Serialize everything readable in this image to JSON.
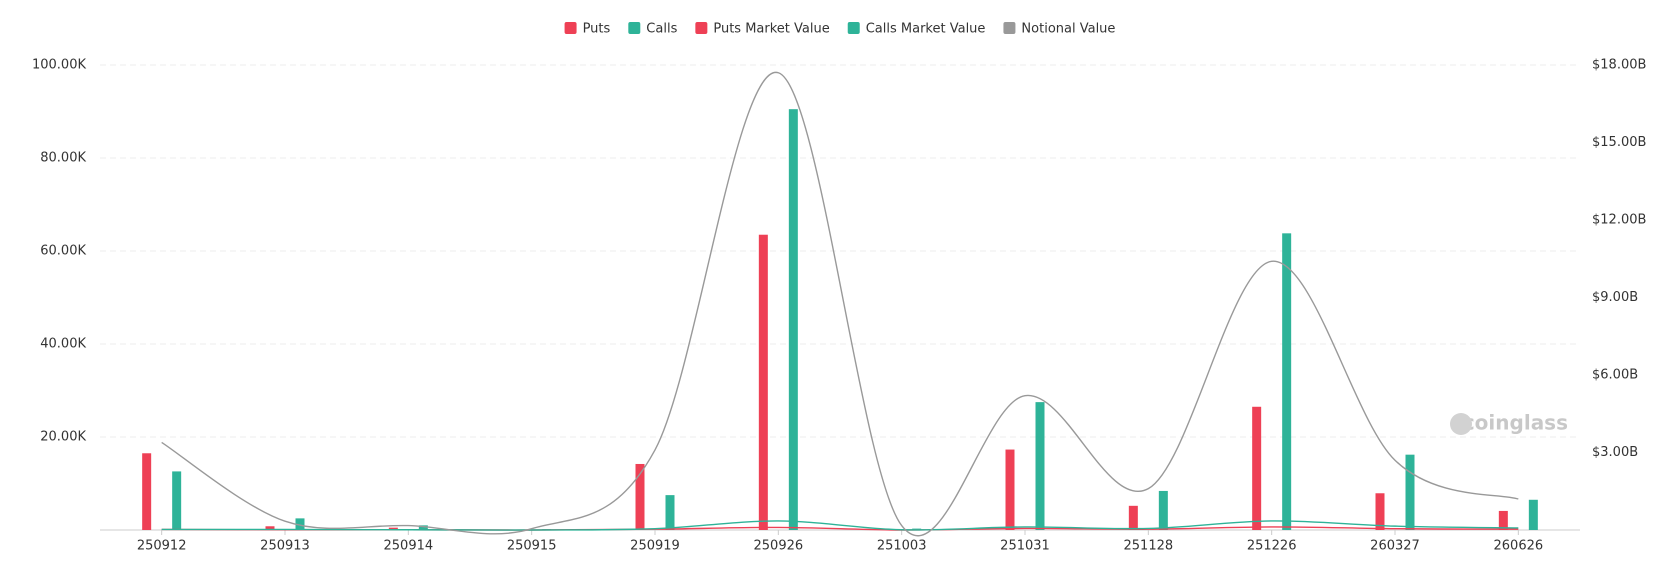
{
  "chart_data": {
    "type": "bar-line",
    "categories": [
      "250912",
      "250913",
      "250914",
      "250915",
      "250919",
      "250926",
      "251003",
      "251031",
      "251128",
      "251226",
      "260327",
      "260626"
    ],
    "series": [
      {
        "name": "Puts",
        "kind": "bar",
        "color": "#ee4055",
        "values": [
          16.5,
          0.8,
          0.5,
          0,
          14.2,
          63.5,
          0,
          17.3,
          5.2,
          26.5,
          7.9,
          4.1
        ]
      },
      {
        "name": "Calls",
        "kind": "bar",
        "color": "#2eb398",
        "values": [
          12.6,
          2.5,
          1.0,
          0.2,
          7.5,
          90.5,
          0.3,
          27.5,
          8.4,
          63.8,
          16.2,
          6.5
        ]
      },
      {
        "name": "Puts Market Value",
        "kind": "line",
        "axis": "y2",
        "color": "#ee4055",
        "values": [
          0.02,
          0.01,
          0.01,
          0.0,
          0.03,
          0.1,
          0.0,
          0.06,
          0.03,
          0.12,
          0.05,
          0.03
        ]
      },
      {
        "name": "Calls Market Value",
        "kind": "line",
        "axis": "y2",
        "color": "#2eb398",
        "values": [
          0.02,
          0.02,
          0.01,
          0.0,
          0.05,
          0.35,
          0.01,
          0.12,
          0.06,
          0.35,
          0.15,
          0.08
        ]
      },
      {
        "name": "Notional Value",
        "kind": "line",
        "axis": "y2",
        "color": "#999999",
        "values": [
          3.39,
          0.34,
          0.17,
          0.05,
          3.1,
          17.7,
          0.17,
          5.2,
          1.6,
          10.4,
          2.7,
          1.2
        ]
      }
    ],
    "ylim": [
      0,
      100
    ],
    "yticks": [
      {
        "value": 20,
        "label": "20.00K"
      },
      {
        "value": 40,
        "label": "40.00K"
      },
      {
        "value": 60,
        "label": "60.00K"
      },
      {
        "value": 80,
        "label": "80.00K"
      },
      {
        "value": 100,
        "label": "100.00K"
      }
    ],
    "y2lim": [
      0,
      18
    ],
    "y2ticks": [
      {
        "value": 3,
        "label": "$3.00B"
      },
      {
        "value": 6,
        "label": "$6.00B"
      },
      {
        "value": 9,
        "label": "$9.00B"
      },
      {
        "value": 12,
        "label": "$12.00B"
      },
      {
        "value": 15,
        "label": "$15.00B"
      },
      {
        "value": 18,
        "label": "$18.00B"
      }
    ],
    "grid": true,
    "legend": "top",
    "watermark": "coinglass"
  }
}
